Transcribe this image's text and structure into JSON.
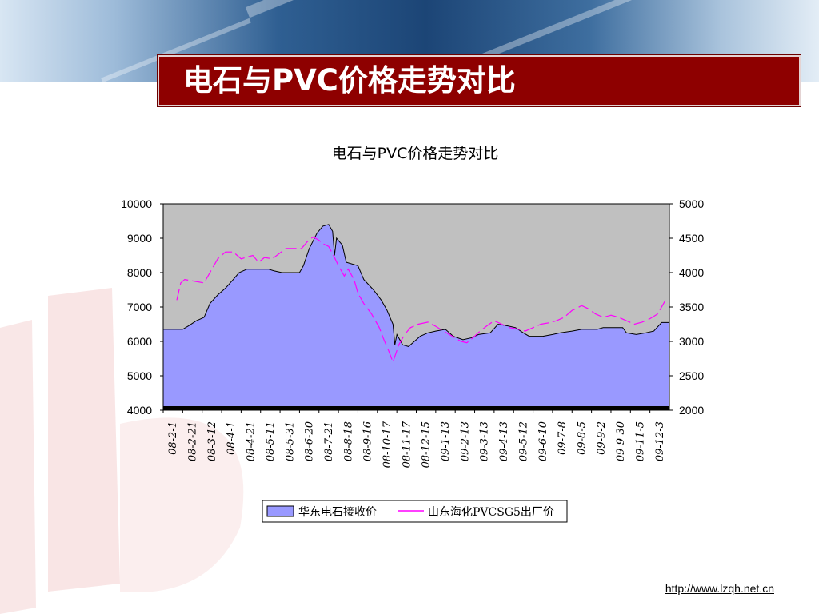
{
  "slide": {
    "title": "电石与PVC价格走势对比",
    "footer_url": "http://www.lzqh.net.cn"
  },
  "colors": {
    "title_bg": "#8e0000",
    "plot_bg": "#c0c0c0",
    "area_fill": "#9999ff",
    "line_color": "#ff00ff"
  },
  "chart_data": {
    "type": "area",
    "title": "电石与PVC价格走势对比",
    "x_tick_labels": [
      "08-2-1",
      "08-2-21",
      "08-3-12",
      "08-4-1",
      "08-4-21",
      "08-5-11",
      "08-5-31",
      "08-6-20",
      "08-7-21",
      "08-8-18",
      "08-9-16",
      "08-10-17",
      "08-11-17",
      "08-12-15",
      "09-1-13",
      "09-2-13",
      "09-3-13",
      "09-4-13",
      "09-5-12",
      "09-6-10",
      "09-7-8",
      "09-8-5",
      "09-9-2",
      "09-9-30",
      "09-11-5",
      "09-12-3"
    ],
    "y_left": {
      "min": 4000,
      "max": 10000,
      "ticks": [
        4000,
        5000,
        6000,
        7000,
        8000,
        9000,
        10000
      ]
    },
    "y_right": {
      "min": 2000,
      "max": 5000,
      "ticks": [
        2000,
        2500,
        3000,
        3500,
        4000,
        4500,
        5000
      ]
    },
    "grid": false,
    "legend_position": "bottom",
    "series": [
      {
        "name": "华东电石接收价",
        "kind": "area",
        "axis": "left",
        "points": [
          [
            0,
            6350
          ],
          [
            1,
            6350
          ],
          [
            1.3,
            6450
          ],
          [
            1.7,
            6600
          ],
          [
            2.1,
            6700
          ],
          [
            2.4,
            7100
          ],
          [
            2.8,
            7350
          ],
          [
            3.2,
            7550
          ],
          [
            3.6,
            7800
          ],
          [
            3.9,
            8000
          ],
          [
            4.3,
            8100
          ],
          [
            5.4,
            8100
          ],
          [
            5.7,
            8050
          ],
          [
            6.1,
            8000
          ],
          [
            7.0,
            8000
          ],
          [
            7.2,
            8200
          ],
          [
            7.5,
            8700
          ],
          [
            7.9,
            9150
          ],
          [
            8.2,
            9350
          ],
          [
            8.5,
            9400
          ],
          [
            8.7,
            9200
          ],
          [
            8.8,
            8500
          ],
          [
            8.9,
            9000
          ],
          [
            9.2,
            8800
          ],
          [
            9.4,
            8300
          ],
          [
            10.0,
            8200
          ],
          [
            10.3,
            7800
          ],
          [
            10.8,
            7500
          ],
          [
            11.2,
            7200
          ],
          [
            11.5,
            6900
          ],
          [
            11.8,
            6500
          ],
          [
            11.9,
            5900
          ],
          [
            12.0,
            6200
          ],
          [
            12.3,
            5900
          ],
          [
            12.6,
            5850
          ],
          [
            12.9,
            6000
          ],
          [
            13.2,
            6150
          ],
          [
            13.6,
            6250
          ],
          [
            14.0,
            6300
          ],
          [
            14.5,
            6350
          ],
          [
            14.9,
            6150
          ],
          [
            15.4,
            6050
          ],
          [
            15.8,
            6100
          ],
          [
            16.2,
            6200
          ],
          [
            16.8,
            6250
          ],
          [
            17.2,
            6500
          ],
          [
            17.7,
            6450
          ],
          [
            18.1,
            6400
          ],
          [
            18.5,
            6250
          ],
          [
            18.8,
            6150
          ],
          [
            19.5,
            6150
          ],
          [
            20.0,
            6200
          ],
          [
            20.4,
            6250
          ],
          [
            21.0,
            6300
          ],
          [
            21.5,
            6350
          ],
          [
            22.3,
            6350
          ],
          [
            22.6,
            6400
          ],
          [
            23.6,
            6400
          ],
          [
            23.8,
            6250
          ],
          [
            24.3,
            6200
          ],
          [
            24.8,
            6250
          ],
          [
            25.2,
            6300
          ],
          [
            25.6,
            6550
          ],
          [
            26,
            6550
          ]
        ]
      },
      {
        "name": "山东海化PVCSG5出厂价",
        "kind": "line",
        "axis": "right",
        "points": [
          [
            0.7,
            3600
          ],
          [
            0.9,
            3850
          ],
          [
            1.1,
            3900
          ],
          [
            2.1,
            3850
          ],
          [
            2.4,
            4000
          ],
          [
            2.8,
            4200
          ],
          [
            3.2,
            4300
          ],
          [
            3.6,
            4300
          ],
          [
            4.0,
            4200
          ],
          [
            4.6,
            4250
          ],
          [
            4.9,
            4150
          ],
          [
            5.2,
            4220
          ],
          [
            5.6,
            4200
          ],
          [
            6.3,
            4350
          ],
          [
            7.1,
            4350
          ],
          [
            7.4,
            4450
          ],
          [
            7.7,
            4520
          ],
          [
            8.0,
            4470
          ],
          [
            8.2,
            4420
          ],
          [
            8.5,
            4380
          ],
          [
            8.8,
            4220
          ],
          [
            9.0,
            4100
          ],
          [
            9.3,
            3950
          ],
          [
            9.5,
            4050
          ],
          [
            9.8,
            3900
          ],
          [
            10.0,
            3700
          ],
          [
            10.3,
            3550
          ],
          [
            10.7,
            3400
          ],
          [
            11.1,
            3200
          ],
          [
            11.3,
            3050
          ],
          [
            11.6,
            2850
          ],
          [
            11.8,
            2700
          ],
          [
            12.1,
            2950
          ],
          [
            12.4,
            3100
          ],
          [
            12.7,
            3200
          ],
          [
            13.1,
            3250
          ],
          [
            13.6,
            3280
          ],
          [
            14.0,
            3220
          ],
          [
            14.4,
            3150
          ],
          [
            14.7,
            3100
          ],
          [
            15.0,
            3050
          ],
          [
            15.3,
            3000
          ],
          [
            15.6,
            2980
          ],
          [
            15.9,
            3050
          ],
          [
            16.2,
            3130
          ],
          [
            16.6,
            3220
          ],
          [
            17.0,
            3300
          ],
          [
            17.4,
            3250
          ],
          [
            17.8,
            3200
          ],
          [
            18.2,
            3180
          ],
          [
            18.6,
            3150
          ],
          [
            19.0,
            3200
          ],
          [
            19.4,
            3250
          ],
          [
            19.8,
            3270
          ],
          [
            20.2,
            3300
          ],
          [
            20.6,
            3350
          ],
          [
            21.0,
            3450
          ],
          [
            21.5,
            3520
          ],
          [
            21.8,
            3480
          ],
          [
            22.2,
            3400
          ],
          [
            22.6,
            3350
          ],
          [
            23.0,
            3380
          ],
          [
            23.4,
            3350
          ],
          [
            23.8,
            3300
          ],
          [
            24.2,
            3250
          ],
          [
            24.6,
            3280
          ],
          [
            25.0,
            3330
          ],
          [
            25.4,
            3400
          ],
          [
            25.8,
            3600
          ]
        ]
      }
    ]
  }
}
